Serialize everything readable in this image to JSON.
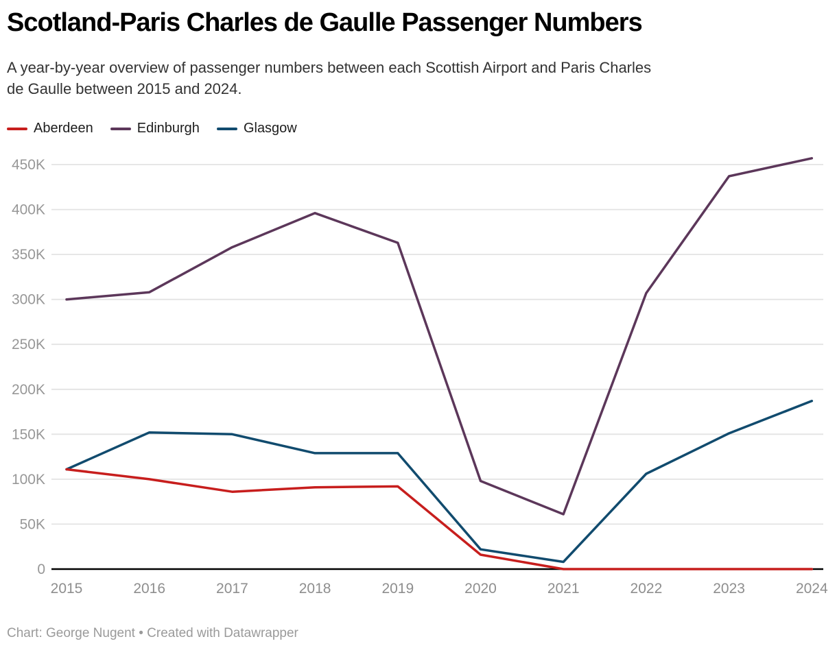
{
  "header": {
    "title": "Scotland-Paris Charles de Gaulle Passenger Numbers",
    "subtitle_lines": [
      "A year-by-year overview of passenger numbers between each Scottish Airport and Paris Charles",
      "de Gaulle between 2015 and 2024."
    ]
  },
  "chart_data": {
    "type": "line",
    "title": "Scotland-Paris Charles de Gaulle Passenger Numbers",
    "x": [
      2015,
      2016,
      2017,
      2018,
      2019,
      2020,
      2021,
      2022,
      2023,
      2024
    ],
    "series": [
      {
        "name": "Aberdeen",
        "color": "#c71e1d",
        "values": [
          111000,
          100000,
          86000,
          91000,
          92000,
          16000,
          0,
          0,
          0,
          0
        ]
      },
      {
        "name": "Edinburgh",
        "color": "#5c375a",
        "values": [
          300000,
          308000,
          358000,
          396000,
          363000,
          98000,
          61000,
          307000,
          437000,
          457000
        ]
      },
      {
        "name": "Glasgow",
        "color": "#114b6e",
        "values": [
          111000,
          152000,
          150000,
          129000,
          129000,
          22000,
          8000,
          106000,
          151000,
          187000
        ]
      }
    ],
    "ylim": [
      0,
      450000
    ],
    "yticks": [
      "0",
      "50K",
      "100K",
      "150K",
      "200K",
      "250K",
      "300K",
      "350K",
      "400K",
      "450K"
    ],
    "ytick_step": 50000,
    "grid": true,
    "legend_position": "top",
    "xlabel": "",
    "ylabel": ""
  },
  "footer": {
    "credit": "Chart: George Nugent • Created with Datawrapper"
  }
}
